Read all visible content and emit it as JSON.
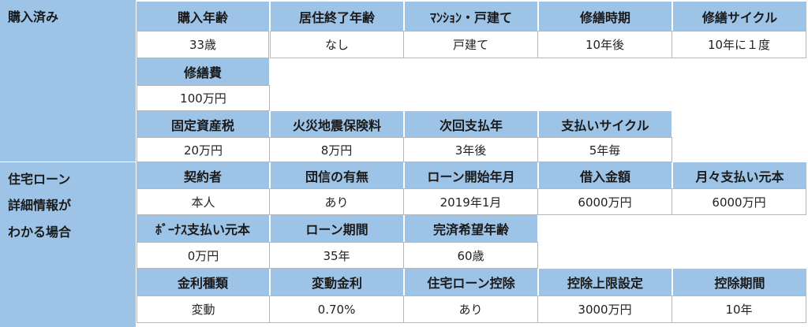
{
  "section1": {
    "label": "購入済み",
    "headers1": [
      "購入年齢",
      "居住終了年齢",
      "ﾏﾝｼｮﾝ・戸建て",
      "修繕時期",
      "修繕サイクル"
    ],
    "values1": [
      "33歳",
      "なし",
      "戸建て",
      "10年後",
      "10年に１度"
    ],
    "headers2": [
      "修繕費"
    ],
    "values2": [
      "100万円"
    ],
    "headers3": [
      "固定資産税",
      "火災地震保険料",
      "次回支払年",
      "支払いサイクル"
    ],
    "values3": [
      "20万円",
      "8万円",
      "3年後",
      "5年毎"
    ]
  },
  "section2": {
    "label_line1": "住宅ローン",
    "label_line2": "詳細情報が",
    "label_line3": "わかる場合",
    "headers1": [
      "契約者",
      "団信の有無",
      "ローン開始年月",
      "借入金額",
      "月々支払い元本"
    ],
    "values1": [
      "本人",
      "あり",
      "2019年1月",
      "6000万円",
      "6000万円"
    ],
    "headers2": [
      "ﾎﾞｰﾅｽ支払い元本",
      "ローン期間",
      "完済希望年齢"
    ],
    "values2": [
      "0万円",
      "35年",
      "60歳"
    ],
    "headers3": [
      "金利種類",
      "変動金利",
      "住宅ローン控除",
      "控除上限設定",
      "控除期間"
    ],
    "values3": [
      "変動",
      "0.70%",
      "あり",
      "3000万円",
      "10年"
    ]
  },
  "colors": {
    "header_bg": "#9dc3e6",
    "value_bg": "#ffffff",
    "border": "#b7b7b7"
  }
}
